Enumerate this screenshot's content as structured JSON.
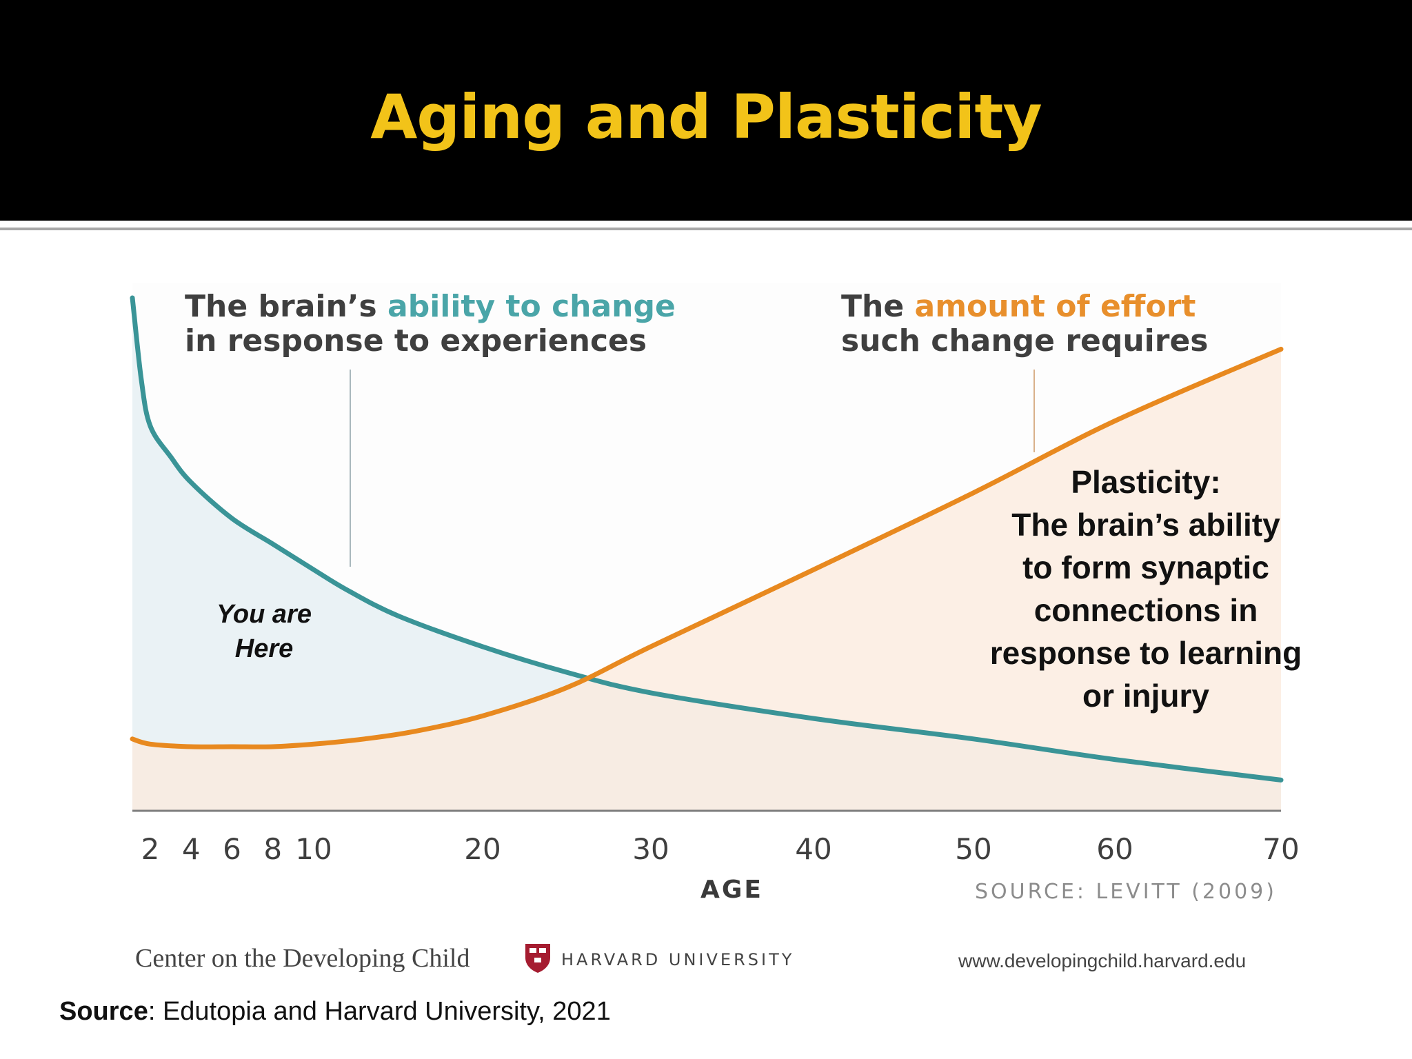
{
  "slide": {
    "title": "Aging and Plasticity",
    "source_label": "Source",
    "source_text": ": Edutopia and Harvard University, 2021"
  },
  "chart_data": {
    "type": "line",
    "title": "",
    "xlabel": "AGE",
    "ylabel": "",
    "x_ticks": [
      2,
      4,
      6,
      8,
      10,
      20,
      30,
      40,
      50,
      60,
      70
    ],
    "x_tick_labels": [
      "2",
      "4",
      "6",
      "8",
      "10",
      "20",
      "30",
      "40",
      "50",
      "60",
      "70"
    ],
    "xlim": [
      0,
      70
    ],
    "ylim": [
      0,
      100
    ],
    "grid": false,
    "series": [
      {
        "name": "The brain's ability to change in response to experiences",
        "color": "#3a9497",
        "fill": "#e3edf1",
        "x": [
          0,
          1,
          2,
          3,
          4,
          6,
          8,
          10,
          12,
          15,
          20,
          25,
          30,
          40,
          50,
          60,
          70
        ],
        "values": [
          100,
          84,
          75,
          69,
          64,
          57,
          52,
          47,
          43,
          38,
          32,
          27,
          23,
          18,
          14,
          10,
          6
        ]
      },
      {
        "name": "The amount of effort such change requires",
        "color": "#e8891f",
        "fill": "#fbeadc",
        "x": [
          0,
          2,
          4,
          6,
          8,
          10,
          13,
          16,
          20,
          25,
          30,
          40,
          50,
          60,
          70
        ],
        "values": [
          14,
          13,
          12.5,
          12.5,
          12.5,
          13,
          14,
          15.5,
          18.5,
          24,
          32,
          47,
          62,
          76,
          90
        ]
      }
    ],
    "annotations": {
      "left_pre": "The brain’s ",
      "left_hi": "ability to change",
      "left_line2": "in response to experiences",
      "right_pre": "The ",
      "right_hi": "amount of effort",
      "right_line2": "such change requires",
      "you_are": "You are",
      "here": "Here"
    },
    "source": "SOURCE: LEVITT (2009)"
  },
  "plasticity_box": {
    "lines": [
      "Plasticity:",
      "The brain’s ability",
      "to form synaptic",
      "connections in",
      "response to learning",
      "or injury"
    ]
  },
  "credits": {
    "center": "Center on the Developing Child",
    "university": "HARVARD UNIVERSITY",
    "website": "www.developingchild.harvard.edu"
  },
  "colors": {
    "header_bg": "#000000",
    "title": "#f2c319",
    "teal": "#3a9497",
    "orange": "#e8891f"
  }
}
